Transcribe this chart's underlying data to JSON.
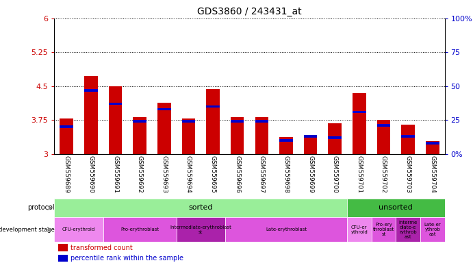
{
  "title": "GDS3860 / 243431_at",
  "samples": [
    "GSM559689",
    "GSM559690",
    "GSM559691",
    "GSM559692",
    "GSM559693",
    "GSM559694",
    "GSM559695",
    "GSM559696",
    "GSM559697",
    "GSM559698",
    "GSM559699",
    "GSM559700",
    "GSM559701",
    "GSM559702",
    "GSM559703",
    "GSM559704"
  ],
  "transformed_count": [
    3.78,
    4.72,
    4.5,
    3.82,
    4.13,
    3.79,
    4.44,
    3.81,
    3.81,
    3.38,
    3.38,
    3.68,
    4.35,
    3.75,
    3.65,
    3.28
  ],
  "percentile_rank": [
    20,
    47,
    37,
    24,
    33,
    24,
    35,
    24,
    24,
    10,
    13,
    12,
    31,
    21,
    13,
    8
  ],
  "ymin": 3.0,
  "ymax": 6.0,
  "yticks": [
    3.0,
    3.75,
    4.5,
    5.25,
    6.0
  ],
  "ytick_labels": [
    "3",
    "3.75",
    "4.5",
    "5.25",
    "6"
  ],
  "right_yticks": [
    0,
    25,
    50,
    75,
    100
  ],
  "right_ytick_labels": [
    "0%",
    "25",
    "50",
    "75",
    "100%"
  ],
  "bar_color": "#cc0000",
  "blue_color": "#0000cc",
  "axis_color_left": "#cc0000",
  "axis_color_right": "#0000cc",
  "protocol_sorted_color": "#99ee99",
  "protocol_unsorted_color": "#44bb44",
  "dev_stage_groups": [
    {
      "label": "CFU-erythroid",
      "start": 0,
      "end": 2,
      "color": "#ee88ee"
    },
    {
      "label": "Pro-erythroblast",
      "start": 2,
      "end": 5,
      "color": "#dd55dd"
    },
    {
      "label": "Intermediate-erythroblast\nst",
      "start": 5,
      "end": 7,
      "color": "#aa22aa"
    },
    {
      "label": "Late-erythroblast",
      "start": 7,
      "end": 12,
      "color": "#dd55dd"
    },
    {
      "label": "CFU-er\nythroid",
      "start": 12,
      "end": 13,
      "color": "#ee88ee"
    },
    {
      "label": "Pro-ery\nthroblast\nst",
      "start": 13,
      "end": 14,
      "color": "#dd55dd"
    },
    {
      "label": "Interme\ndiate-e\nrythrob\nast",
      "start": 14,
      "end": 15,
      "color": "#aa22aa"
    },
    {
      "label": "Late-er\nythrob\nast",
      "start": 15,
      "end": 16,
      "color": "#dd55dd"
    }
  ],
  "bar_width": 0.55
}
